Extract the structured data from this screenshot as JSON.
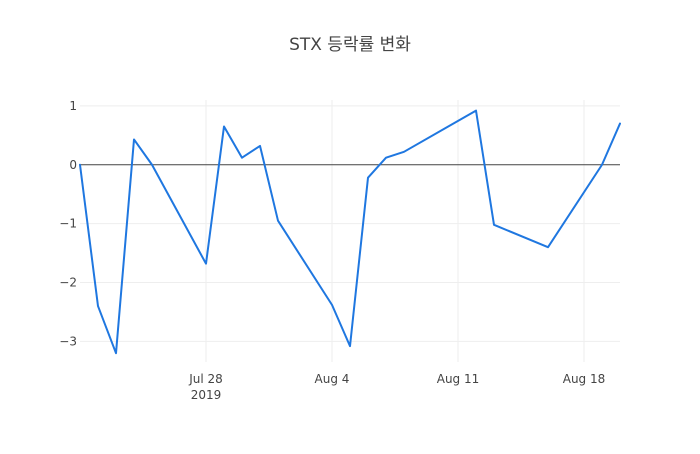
{
  "chart_data": {
    "type": "line",
    "title": "STX 등락률 변화",
    "xlabel": "",
    "ylabel": "",
    "x": [
      "2019-07-21",
      "2019-07-22",
      "2019-07-23",
      "2019-07-24",
      "2019-07-25",
      "2019-07-28",
      "2019-07-29",
      "2019-07-30",
      "2019-07-31",
      "2019-08-01",
      "2019-08-04",
      "2019-08-05",
      "2019-08-06",
      "2019-08-07",
      "2019-08-08",
      "2019-08-12",
      "2019-08-13",
      "2019-08-16",
      "2019-08-19",
      "2019-08-20"
    ],
    "series": [
      {
        "values": [
          0.0,
          -2.4,
          -3.2,
          0.43,
          0.0,
          -1.68,
          0.65,
          0.12,
          0.32,
          -0.95,
          -2.38,
          -3.08,
          -0.22,
          0.12,
          0.22,
          0.92,
          -1.02,
          -1.4,
          0.0,
          0.7
        ],
        "color": "#1f77e0"
      }
    ],
    "x_ticks": [
      {
        "date": "2019-07-28",
        "label": "Jul 28",
        "sublabel": "2019"
      },
      {
        "date": "2019-08-04",
        "label": "Aug 4",
        "sublabel": ""
      },
      {
        "date": "2019-08-11",
        "label": "Aug 11",
        "sublabel": ""
      },
      {
        "date": "2019-08-18",
        "label": "Aug 18",
        "sublabel": ""
      }
    ],
    "y_ticks": [
      1,
      0,
      -1,
      -2,
      -3
    ],
    "y_tick_labels": [
      "1",
      "0",
      "−1",
      "−2",
      "−3"
    ],
    "xlim": [
      "2019-07-21",
      "2019-08-20"
    ],
    "ylim": [
      -3.35,
      1.1
    ],
    "grid": true,
    "zero_line": true,
    "legend": false
  }
}
